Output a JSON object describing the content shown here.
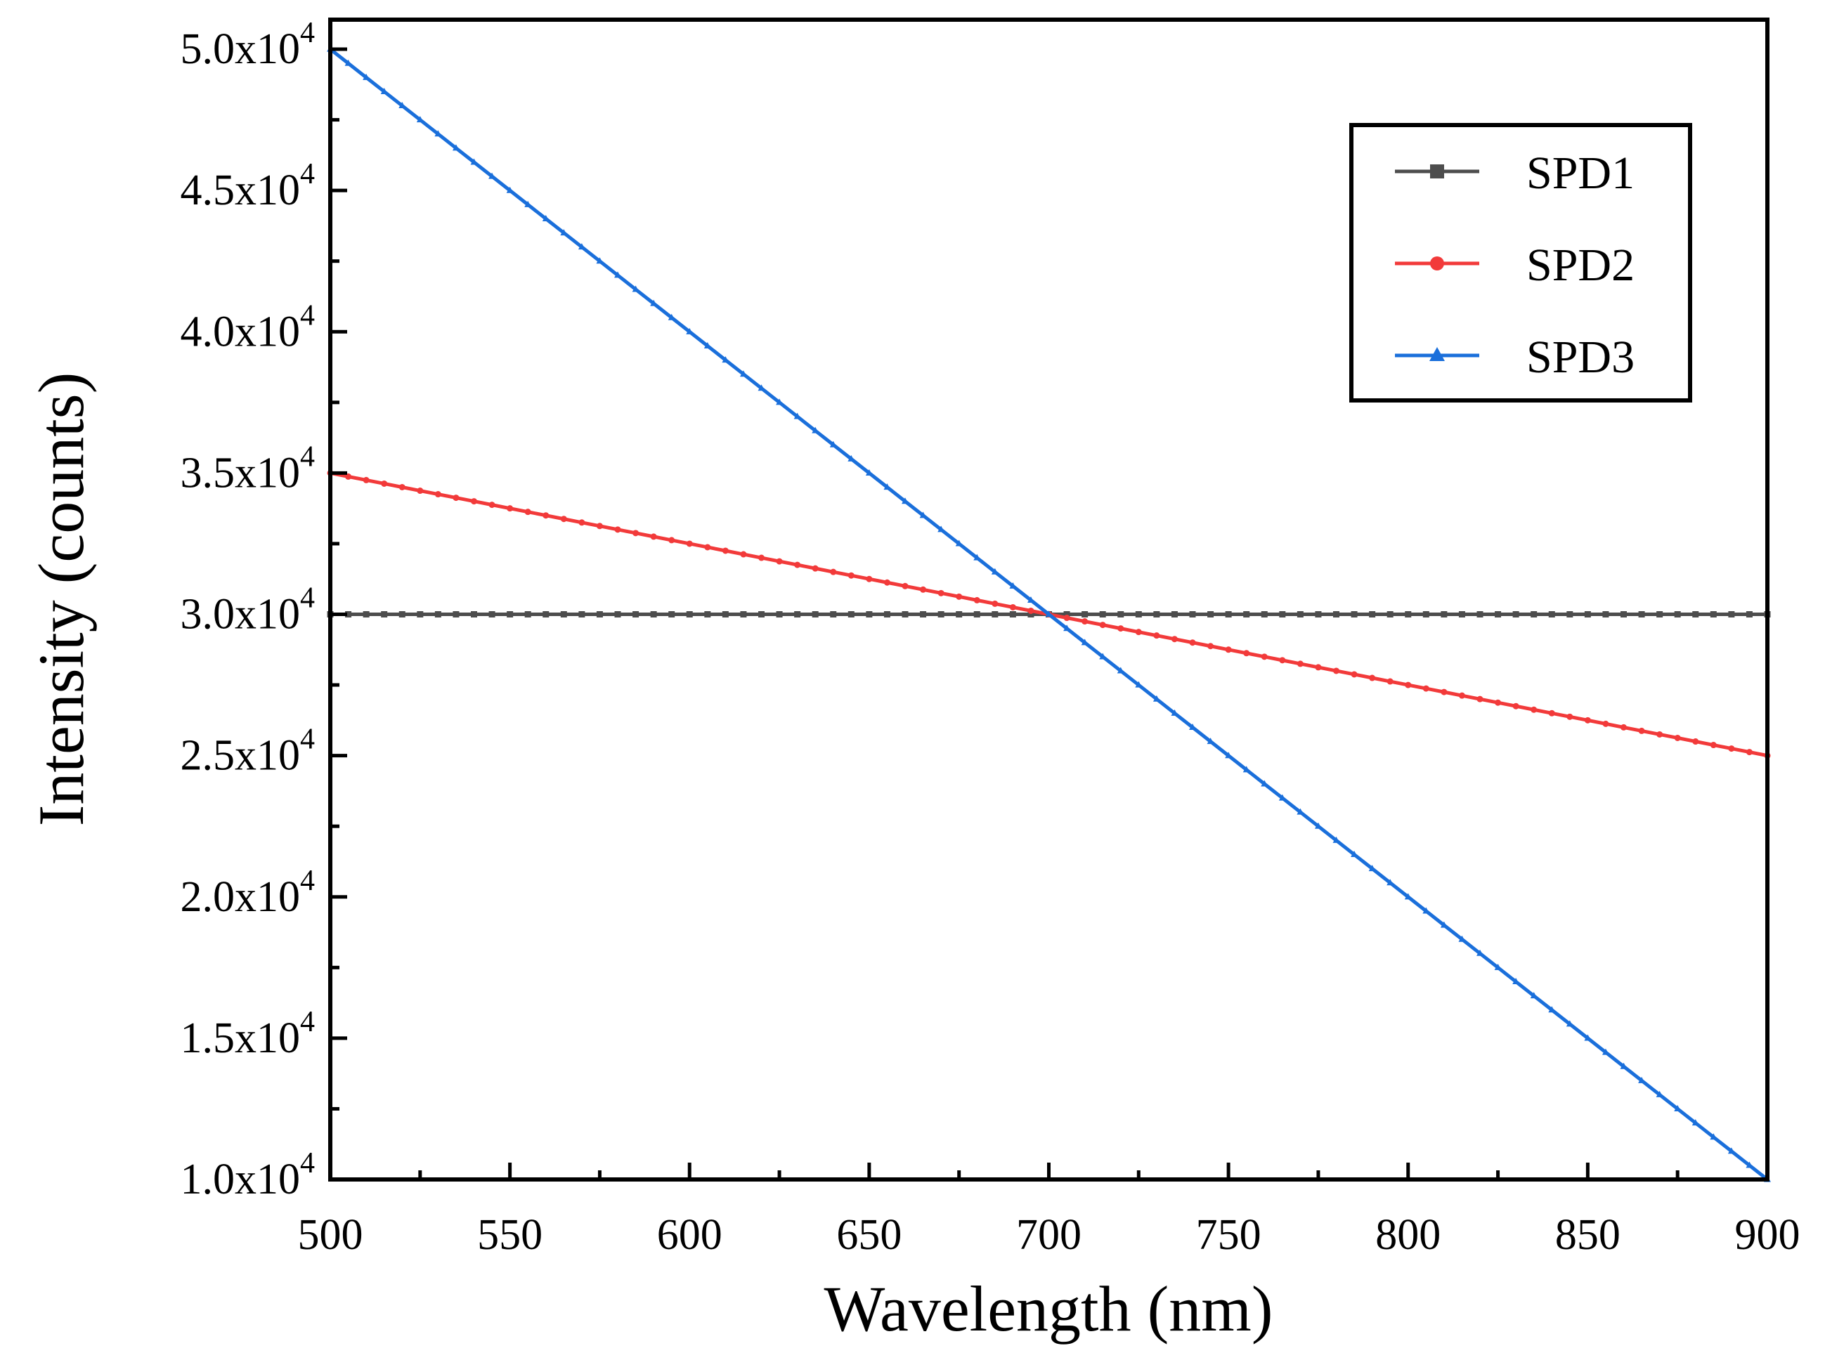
{
  "chart_data": {
    "type": "line",
    "title": "",
    "xlabel": "Wavelength (nm)",
    "ylabel": "Intensity (counts)",
    "xlim": [
      500,
      900
    ],
    "ylim": [
      10000,
      50000
    ],
    "x_ticks": [
      500,
      550,
      600,
      650,
      700,
      750,
      800,
      850,
      900
    ],
    "y_ticks": [
      {
        "value": 10000,
        "mantissa": "1.0x10",
        "exp": "4"
      },
      {
        "value": 15000,
        "mantissa": "1.5x10",
        "exp": "4"
      },
      {
        "value": 20000,
        "mantissa": "2.0x10",
        "exp": "4"
      },
      {
        "value": 25000,
        "mantissa": "2.5x10",
        "exp": "4"
      },
      {
        "value": 30000,
        "mantissa": "3.0x10",
        "exp": "4"
      },
      {
        "value": 35000,
        "mantissa": "3.5x10",
        "exp": "4"
      },
      {
        "value": 40000,
        "mantissa": "4.0x10",
        "exp": "4"
      },
      {
        "value": 45000,
        "mantissa": "4.5x10",
        "exp": "4"
      },
      {
        "value": 50000,
        "mantissa": "5.0x10",
        "exp": "4"
      }
    ],
    "x_range": {
      "start": 500,
      "end": 900,
      "step": 5
    },
    "grid": false,
    "legend_position": "top-right",
    "series": [
      {
        "name": "SPD1",
        "color": "#4d4d4d",
        "marker": "square",
        "start_value": 30000,
        "end_value": 30000
      },
      {
        "name": "SPD2",
        "color": "#f23a3a",
        "marker": "circle",
        "start_value": 35000,
        "end_value": 25000
      },
      {
        "name": "SPD3",
        "color": "#1a6fdb",
        "marker": "triangle",
        "start_value": 50000,
        "end_value": 10000
      }
    ]
  }
}
